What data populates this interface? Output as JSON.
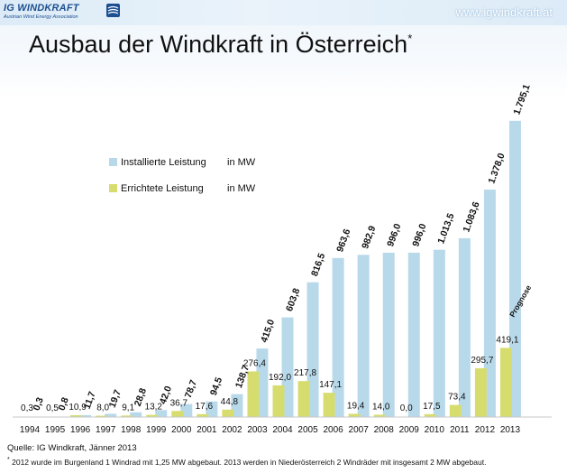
{
  "header": {
    "logo_name": "IG WINDKRAFT",
    "logo_tagline": "Austrian Wind Energy Association",
    "url": "www.igwindkraft.at"
  },
  "title": "Ausbau der Windkraft in Österreich",
  "title_mark": "*",
  "footer": {
    "source": "Quelle: IG Windkraft, Jänner 2013",
    "note_mark": "*",
    "note": "2012 wurde im Burgenland 1 Windrad mit 1,25 MW abgebaut. 2013 werden in Niederösterreich 2 Windräder mit insgesamt 2 MW abgebaut."
  },
  "colors": {
    "installed": "#b8d9ea",
    "built": "#d6dd6e",
    "axis": "#c8c8c8"
  },
  "chart_data": {
    "type": "bar",
    "title": "Ausbau der Windkraft in Österreich",
    "xlabel": "",
    "ylabel": "",
    "categories": [
      "1994",
      "1995",
      "1996",
      "1997",
      "1998",
      "1999",
      "2000",
      "2001",
      "2002",
      "2003",
      "2004",
      "2005",
      "2006",
      "2007",
      "2008",
      "2009",
      "2010",
      "2011",
      "2012",
      "2013"
    ],
    "ylim": [
      0,
      1900
    ],
    "grid": false,
    "legend_position": "top-left",
    "series": [
      {
        "name": "Installierte Leistung",
        "unit": "in MW",
        "values": [
          0.3,
          0.8,
          11.7,
          19.7,
          28.8,
          42.0,
          78.7,
          94.5,
          138.7,
          415.0,
          603.8,
          816.5,
          963.6,
          982.9,
          996.0,
          996.0,
          1013.5,
          1083.6,
          1378.0,
          1795.1
        ],
        "labels": [
          "0,3",
          "0,8",
          "11,7",
          "19,7",
          "28,8",
          "42,0",
          "78,7",
          "94,5",
          "138,7",
          "415,0",
          "603,8",
          "816,5",
          "963,6",
          "982,9",
          "996,0",
          "996,0",
          "1.013,5",
          "1.083,6",
          "1.378,0",
          "1.795,1"
        ]
      },
      {
        "name": "Errichtete Leistung",
        "unit": "in MW",
        "values": [
          0.3,
          0.5,
          10.9,
          8.0,
          9.1,
          13.2,
          36.7,
          17.6,
          44.8,
          276.4,
          192.0,
          217.8,
          147.1,
          19.4,
          14.0,
          0.0,
          17.5,
          73.4,
          295.7,
          419.1
        ],
        "labels": [
          "0,3",
          "0,5",
          "10,9",
          "8,0",
          "9,1",
          "13,2",
          "36,7",
          "17,6",
          "44,8",
          "276,4",
          "192,0",
          "217,8",
          "147,1",
          "19,4",
          "14,0",
          "0,0",
          "17,5",
          "73,4",
          "295,7",
          "419,1"
        ]
      }
    ],
    "annotations": [
      {
        "category": "2013",
        "text": "Prognose"
      }
    ]
  }
}
